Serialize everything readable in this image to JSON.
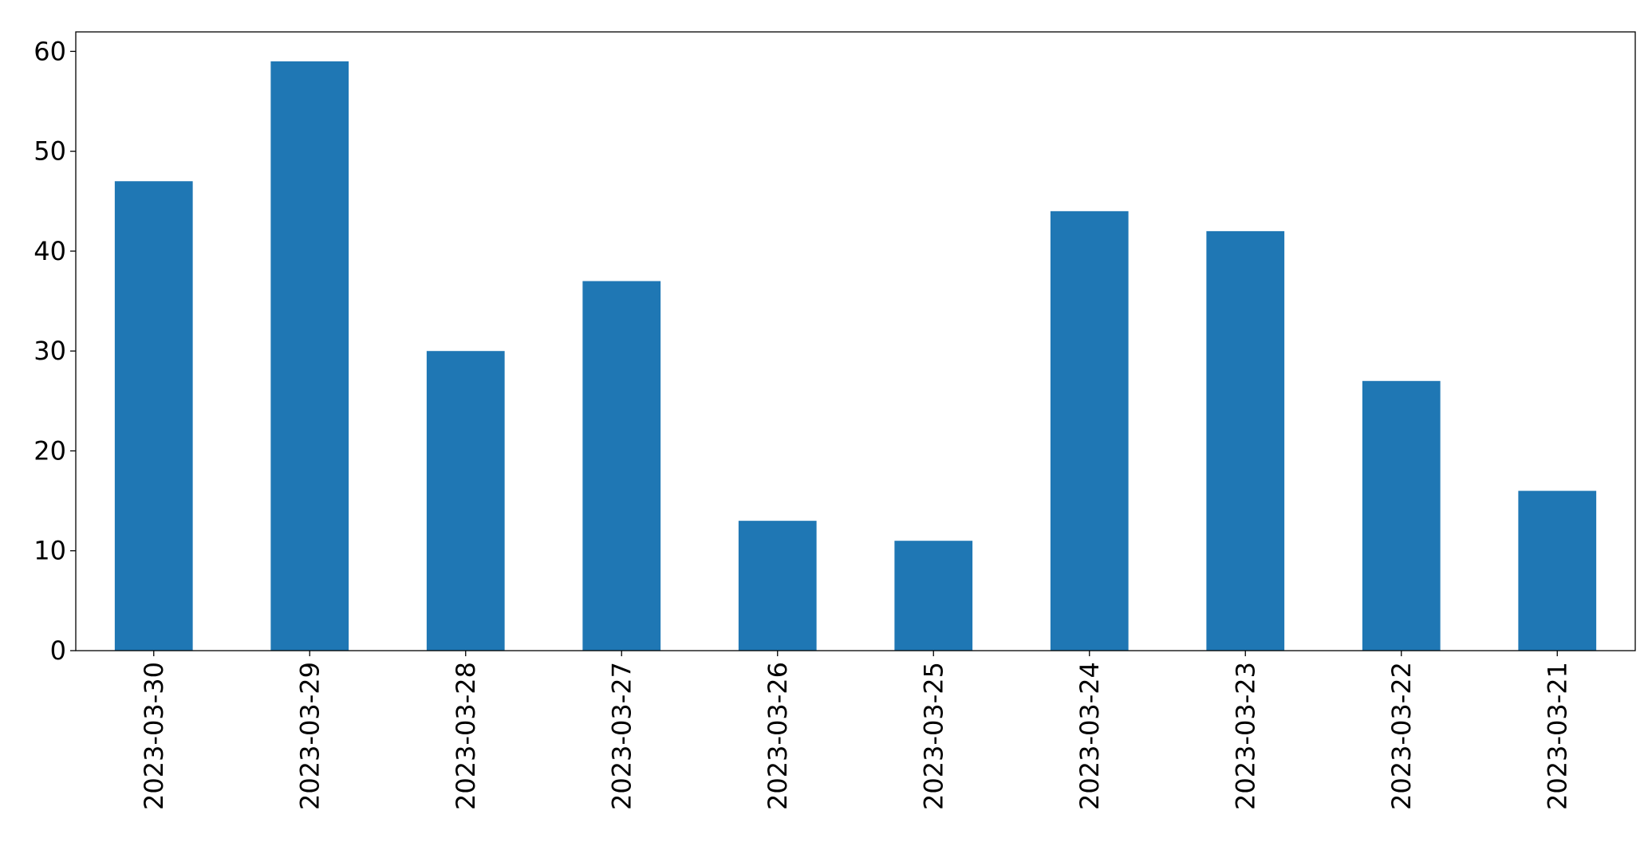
{
  "chart_data": {
    "type": "bar",
    "categories": [
      "2023-03-30",
      "2023-03-29",
      "2023-03-28",
      "2023-03-27",
      "2023-03-26",
      "2023-03-25",
      "2023-03-24",
      "2023-03-23",
      "2023-03-22",
      "2023-03-21"
    ],
    "values": [
      47,
      59,
      30,
      37,
      13,
      11,
      44,
      42,
      27,
      16
    ],
    "color": "#1f77b4",
    "ylim": [
      0,
      61.95
    ],
    "yticks": [
      0,
      10,
      20,
      30,
      40,
      50,
      60
    ],
    "grid": false
  }
}
